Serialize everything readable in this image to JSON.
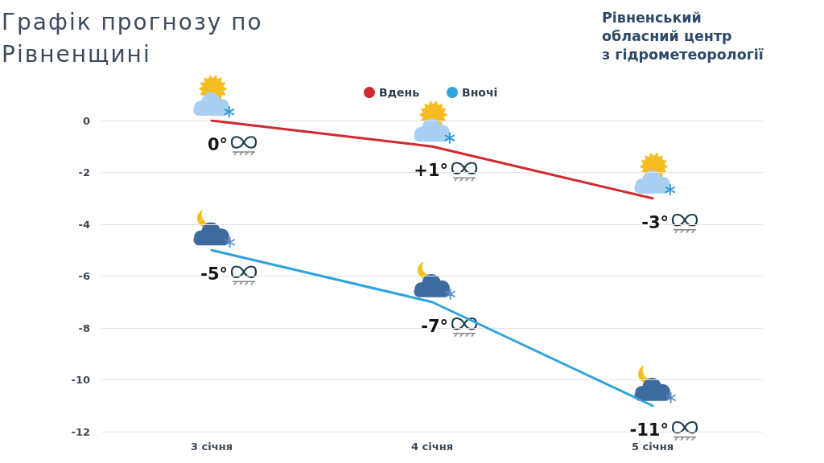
{
  "chart_data": {
    "type": "line",
    "title": "Графік прогнозу по Рівненщині",
    "annotations": [
      "Рівненський\nобласний центр\nз гідрометеорології",
      {
        "text": "+1°",
        "x": "4 січня",
        "y": -1
      }
    ],
    "categories": [
      "3 січня",
      "4 січня",
      "5 січня"
    ],
    "series": [
      {
        "name": "Вдень",
        "color": "#cf2a2f",
        "values": [
          0,
          -1,
          -3
        ],
        "value_labels": [
          "0°",
          null,
          "-3°"
        ]
      },
      {
        "name": "Вночі",
        "color": "#2ea3dc",
        "values": [
          -5,
          -7,
          -11
        ],
        "value_labels": [
          "-5°",
          "-7°",
          "-11°"
        ]
      }
    ],
    "ylim": [
      -12,
      0
    ],
    "yticks": [
      -12,
      -10,
      -8,
      -6,
      -4,
      -2,
      0
    ],
    "grid": "y",
    "legend": "top",
    "marker": "none"
  }
}
